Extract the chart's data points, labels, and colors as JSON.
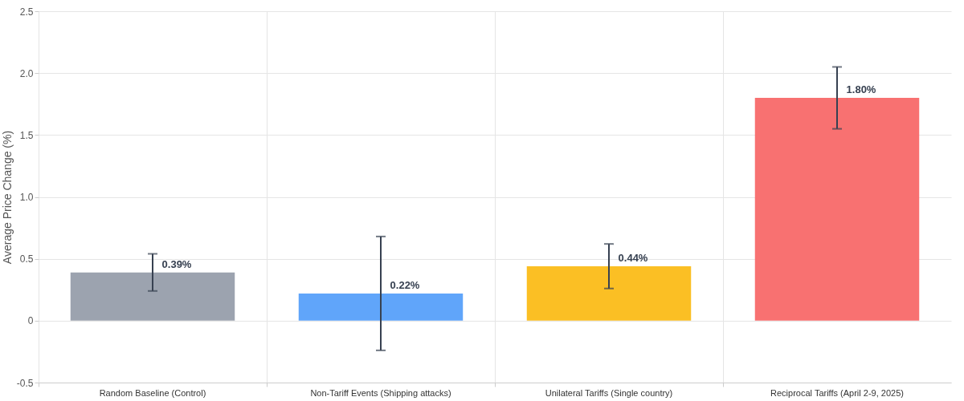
{
  "chart_data": {
    "type": "bar",
    "ylabel": "Average Price Change (%)",
    "categories": [
      "Random Baseline (Control)",
      "Non-Tariff Events (Shipping attacks)",
      "Unilateral Tariffs (Single country)",
      "Reciprocal Tariffs (April 2-9, 2025)"
    ],
    "values": [
      0.39,
      0.22,
      0.44,
      1.8
    ],
    "errors": [
      0.15,
      0.46,
      0.18,
      0.25
    ],
    "value_labels": [
      "0.39%",
      "0.22%",
      "0.44%",
      "1.80%"
    ],
    "colors": [
      "#9ca3af",
      "#60a5fa",
      "#fbbf24",
      "#f87171"
    ],
    "ylim": [
      -0.5,
      2.5
    ],
    "yticks": [
      {
        "value": -0.5,
        "label": "-0.5"
      },
      0,
      {
        "value": 0.5,
        "label": "0.5"
      },
      {
        "value": 1,
        "label": "1.0"
      },
      {
        "value": 1.5,
        "label": "1.5"
      },
      {
        "value": 2,
        "label": "2.0"
      },
      {
        "value": 2.5,
        "label": "2.5"
      }
    ],
    "grid": true,
    "legend": false
  }
}
